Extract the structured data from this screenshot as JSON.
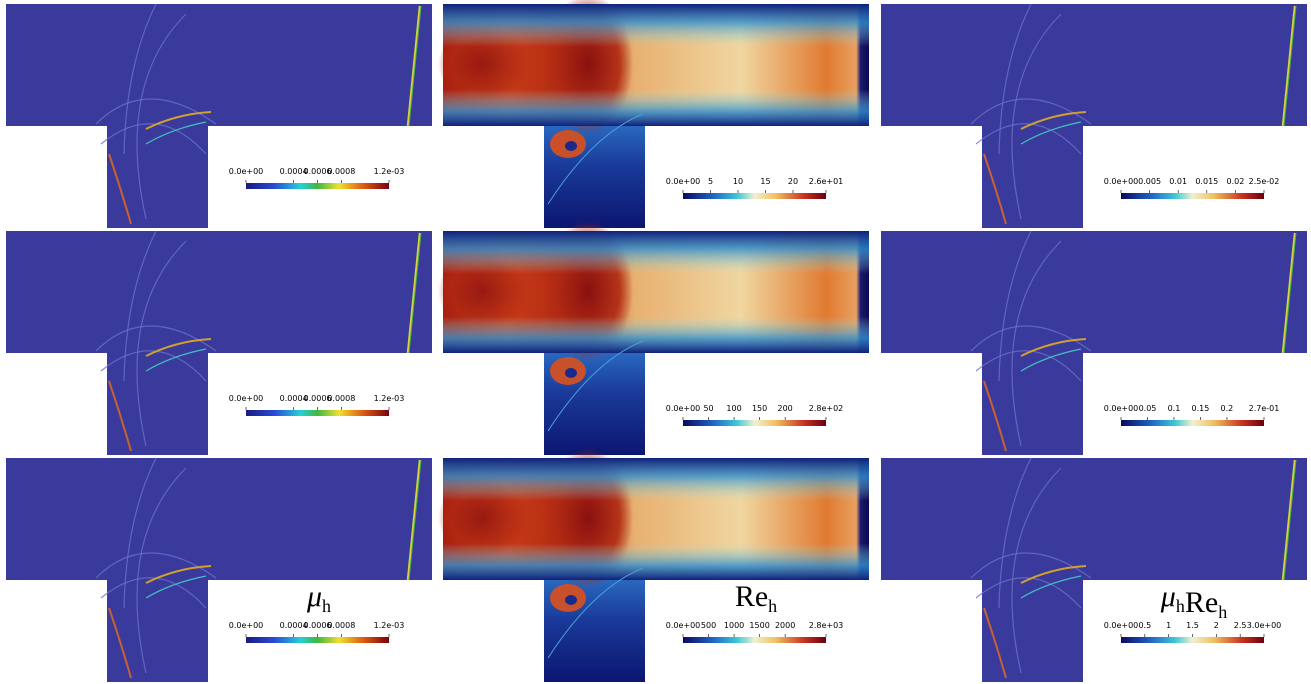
{
  "rows": [
    {
      "panels": [
        {
          "colorbar_labels": [
            "0.0e+00",
            "0.0004",
            "0.0006",
            "0.0008",
            "1.2e-03"
          ]
        },
        {
          "colorbar_labels": [
            "0.0e+00",
            "5",
            "10",
            "15",
            "20",
            "2.6e+01"
          ]
        },
        {
          "colorbar_labels": [
            "0.0e+00",
            "0.005",
            "0.01",
            "0.015",
            "0.02",
            "2.5e-02"
          ]
        }
      ]
    },
    {
      "panels": [
        {
          "colorbar_labels": [
            "0.0e+00",
            "0.0004",
            "0.0006",
            "0.0008",
            "1.2e-03"
          ]
        },
        {
          "colorbar_labels": [
            "0.0e+00",
            "50",
            "100",
            "150",
            "200",
            "2.8e+02"
          ]
        },
        {
          "colorbar_labels": [
            "0.0e+00",
            "0.05",
            "0.1",
            "0.15",
            "0.2",
            "2.7e-01"
          ]
        }
      ]
    },
    {
      "panels": [
        {
          "title": [
            {
              "text": "μ",
              "sub": "h"
            }
          ],
          "colorbar_labels": [
            "0.0e+00",
            "0.0004",
            "0.0006",
            "0.0008",
            "1.2e-03"
          ]
        },
        {
          "title": [
            {
              "text": "Re",
              "sub": "h"
            }
          ],
          "colorbar_labels": [
            "0.0e+00",
            "500",
            "1000",
            "1500",
            "2000",
            "2.8e+03"
          ]
        },
        {
          "title": [
            {
              "text": "μ",
              "sub": "h"
            },
            {
              "text": "Re",
              "sub": "h"
            }
          ],
          "colorbar_labels": [
            "0.0e+00",
            "0.5",
            "1",
            "1.5",
            "2",
            "2.5",
            "3.0e+00"
          ]
        }
      ]
    }
  ]
}
